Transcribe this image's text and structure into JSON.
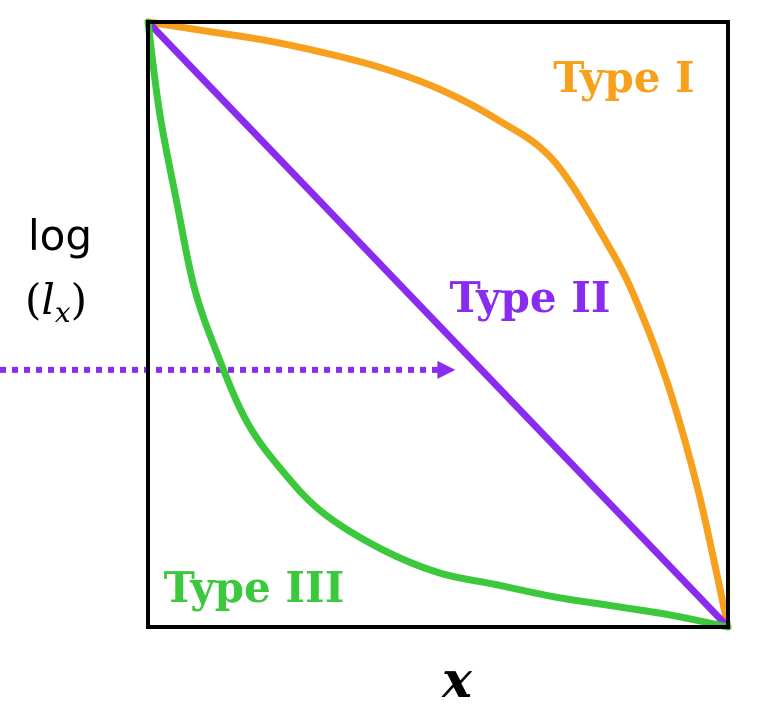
{
  "chart_data": {
    "type": "line",
    "title": "",
    "xlabel": "x",
    "ylabel_line1": "log",
    "ylabel_line2_open": "(",
    "ylabel_line2_var": "l",
    "ylabel_line2_sub": "x",
    "ylabel_line2_close": ")",
    "xlim": [
      0,
      1
    ],
    "ylim": [
      0,
      1
    ],
    "grid": false,
    "series": [
      {
        "name": "Type I",
        "color": "#f7a01d",
        "x": [
          0.0,
          0.1,
          0.2,
          0.3,
          0.4,
          0.5,
          0.6,
          0.7,
          0.8,
          0.85,
          0.9,
          0.95,
          1.0
        ],
        "y": [
          1.0,
          0.985,
          0.97,
          0.95,
          0.925,
          0.89,
          0.84,
          0.77,
          0.62,
          0.52,
          0.39,
          0.22,
          0.0
        ]
      },
      {
        "name": "Type II",
        "color": "#8a2cf0",
        "x": [
          0.0,
          1.0
        ],
        "y": [
          1.0,
          0.0
        ]
      },
      {
        "name": "Type III",
        "color": "#3cc83c",
        "x": [
          0.0,
          0.02,
          0.05,
          0.08,
          0.12,
          0.17,
          0.23,
          0.3,
          0.4,
          0.5,
          0.6,
          0.7,
          0.8,
          0.9,
          1.0
        ],
        "y": [
          1.0,
          0.85,
          0.7,
          0.56,
          0.45,
          0.34,
          0.26,
          0.19,
          0.13,
          0.09,
          0.07,
          0.05,
          0.035,
          0.02,
          0.0
        ]
      }
    ],
    "arrow": {
      "color": "#8a2cf0",
      "style": "dotted",
      "y": 0.425,
      "x_end": 0.53
    }
  }
}
